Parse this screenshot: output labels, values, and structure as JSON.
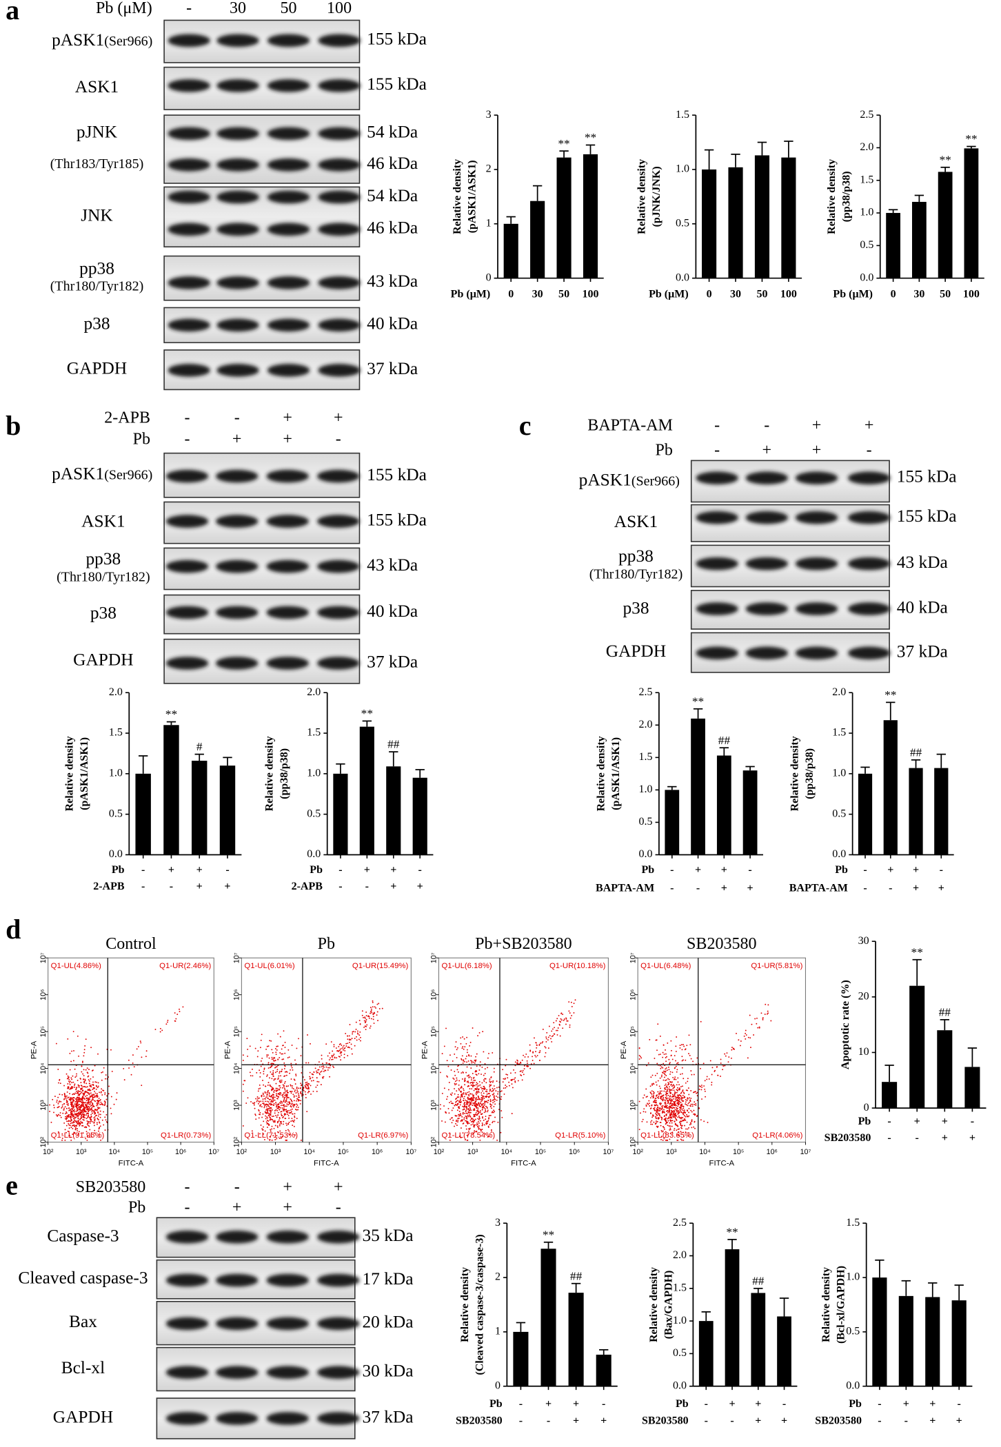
{
  "panel_labels": [
    "a",
    "b",
    "c",
    "d",
    "e"
  ],
  "blots": [
    {
      "header": [
        {
          "name": "Pb (μM)",
          "cells": [
            "-",
            "30",
            "50",
            "100"
          ]
        }
      ],
      "rows": [
        {
          "label": "pASK1",
          "sub": "(Ser966)",
          "kda": [
            "155 kDa"
          ]
        },
        {
          "label": "ASK1",
          "kda": [
            "155 kDa"
          ]
        },
        {
          "label": "pJNK",
          "sub": "(Thr183/Tyr185)",
          "kda": [
            "54 kDa",
            "46 kDa"
          ]
        },
        {
          "label": "JNK",
          "kda": [
            "54 kDa",
            "46 kDa"
          ]
        },
        {
          "label": "pp38",
          "sub": "(Thr180/Tyr182)",
          "kda": [
            "43 kDa"
          ]
        },
        {
          "label": "p38",
          "kda": [
            "40 kDa"
          ]
        },
        {
          "label": "GAPDH",
          "kda": [
            "37 kDa"
          ]
        }
      ]
    },
    {
      "header": [
        {
          "name": "2-APB",
          "cells": [
            "-",
            "-",
            "+",
            "+"
          ]
        },
        {
          "name": "Pb",
          "cells": [
            "-",
            "+",
            "+",
            "-"
          ]
        }
      ],
      "rows": [
        {
          "label": "pASK1",
          "sub": "(Ser966)",
          "kda": [
            "155 kDa"
          ]
        },
        {
          "label": "ASK1",
          "kda": [
            "155 kDa"
          ]
        },
        {
          "label": "pp38",
          "sub": "(Thr180/Tyr182)",
          "kda": [
            "43 kDa"
          ]
        },
        {
          "label": "p38",
          "kda": [
            "40 kDa"
          ]
        },
        {
          "label": "GAPDH",
          "kda": [
            "37 kDa"
          ]
        }
      ]
    },
    {
      "header": [
        {
          "name": "BAPTA-AM",
          "cells": [
            "-",
            "-",
            "+",
            "+"
          ]
        },
        {
          "name": "Pb",
          "cells": [
            "-",
            "+",
            "+",
            "-"
          ]
        }
      ],
      "rows": [
        {
          "label": "pASK1",
          "sub": "(Ser966)",
          "kda": [
            "155 kDa"
          ]
        },
        {
          "label": "ASK1",
          "kda": [
            "155 kDa"
          ]
        },
        {
          "label": "pp38",
          "sub": "(Thr180/Tyr182)",
          "kda": [
            "43 kDa"
          ]
        },
        {
          "label": "p38",
          "kda": [
            "40 kDa"
          ]
        },
        {
          "label": "GAPDH",
          "kda": [
            "37 kDa"
          ]
        }
      ]
    },
    {
      "header": [
        {
          "name": "SB203580",
          "cells": [
            "-",
            "-",
            "+",
            "+"
          ]
        },
        {
          "name": "Pb",
          "cells": [
            "-",
            "+",
            "+",
            "-"
          ]
        }
      ],
      "rows": [
        {
          "label": "Caspase-3",
          "kda": [
            "35 kDa"
          ]
        },
        {
          "label": "Cleaved caspase-3",
          "kda": [
            "17 kDa"
          ]
        },
        {
          "label": "Bax",
          "kda": [
            "20 kDa"
          ]
        },
        {
          "label": "Bcl-xl",
          "kda": [
            "30 kDa"
          ]
        },
        {
          "label": "GAPDH",
          "kda": [
            "37 kDa"
          ]
        }
      ]
    }
  ],
  "chart_data": [
    {
      "type": "bar",
      "ylabel": [
        "Relative density",
        "(pASK1/ASK1)"
      ],
      "color": "#000000",
      "ylim": [
        0,
        3
      ],
      "yticks": [
        0,
        1,
        2,
        3
      ],
      "xlabel": "Pb (μM)",
      "categories": [
        "0",
        "30",
        "50",
        "100"
      ],
      "values": [
        1.0,
        1.42,
        2.22,
        2.28
      ],
      "errors": [
        0.13,
        0.28,
        0.12,
        0.17
      ],
      "annotations": [
        null,
        null,
        "**",
        "**"
      ]
    },
    {
      "type": "bar",
      "ylabel": [
        "Relative density",
        "(pJNK/JNK)"
      ],
      "color": "#000000",
      "ylim": [
        0,
        1.5
      ],
      "yticks": [
        {
          "value": 0,
          "label": "0.0"
        },
        0.5,
        {
          "value": 1,
          "label": "1.0"
        },
        1.5
      ],
      "xlabel": "Pb (μM)",
      "categories": [
        "0",
        "30",
        "50",
        "100"
      ],
      "values": [
        1.0,
        1.02,
        1.13,
        1.11
      ],
      "errors": [
        0.18,
        0.12,
        0.12,
        0.15
      ],
      "annotations": [
        null,
        null,
        null,
        null
      ]
    },
    {
      "type": "bar",
      "ylabel": [
        "Relative density",
        "(pp38/p38)"
      ],
      "color": "#000000",
      "ylim": [
        0,
        2.5
      ],
      "yticks": [
        {
          "value": 0,
          "label": "0.0"
        },
        0.5,
        {
          "value": 1,
          "label": "1.0"
        },
        1.5,
        {
          "value": 2,
          "label": "2.0"
        },
        2.5
      ],
      "xlabel": "Pb (μM)",
      "categories": [
        "0",
        "30",
        "50",
        "100"
      ],
      "values": [
        1.0,
        1.17,
        1.63,
        1.99
      ],
      "errors": [
        0.05,
        0.1,
        0.07,
        0.03
      ],
      "annotations": [
        null,
        null,
        "**",
        "**"
      ]
    },
    {
      "type": "bar",
      "ylabel": [
        "Relative density",
        "(pASK1/ASK1)"
      ],
      "color": "#000000",
      "ylim": [
        0,
        2
      ],
      "yticks": [
        {
          "value": 0,
          "label": "0.0"
        },
        0.5,
        {
          "value": 1,
          "label": "1.0"
        },
        1.5,
        {
          "value": 2,
          "label": "2.0"
        }
      ],
      "conditions": [
        {
          "name": "Pb",
          "signs": [
            "-",
            "+",
            "+",
            "-"
          ]
        },
        {
          "name": "2-APB",
          "signs": [
            "-",
            "-",
            "+",
            "+"
          ]
        }
      ],
      "values": [
        1.0,
        1.6,
        1.16,
        1.1
      ],
      "errors": [
        0.22,
        0.04,
        0.08,
        0.1
      ],
      "annotations": [
        null,
        "**",
        "#",
        null
      ]
    },
    {
      "type": "bar",
      "ylabel": [
        "Relative density",
        "(pp38/p38)"
      ],
      "color": "#000000",
      "ylim": [
        0,
        2
      ],
      "yticks": [
        {
          "value": 0,
          "label": "0.0"
        },
        0.5,
        {
          "value": 1,
          "label": "1.0"
        },
        1.5,
        {
          "value": 2,
          "label": "2.0"
        }
      ],
      "conditions": [
        {
          "name": "Pb",
          "signs": [
            "-",
            "+",
            "+",
            "-"
          ]
        },
        {
          "name": "2-APB",
          "signs": [
            "-",
            "-",
            "+",
            "+"
          ]
        }
      ],
      "values": [
        1.0,
        1.58,
        1.09,
        0.95
      ],
      "errors": [
        0.12,
        0.07,
        0.18,
        0.1
      ],
      "annotations": [
        null,
        "**",
        "##",
        null
      ]
    },
    {
      "type": "bar",
      "ylabel": [
        "Relative density",
        "(pASK1/ASK1)"
      ],
      "color": "#000000",
      "ylim": [
        0,
        2.5
      ],
      "yticks": [
        {
          "value": 0,
          "label": "0.0"
        },
        0.5,
        {
          "value": 1,
          "label": "1.0"
        },
        1.5,
        {
          "value": 2,
          "label": "2.0"
        },
        2.5
      ],
      "conditions": [
        {
          "name": "Pb",
          "signs": [
            "-",
            "+",
            "+",
            "-"
          ]
        },
        {
          "name": "BAPTA-AM",
          "signs": [
            "-",
            "-",
            "+",
            "+"
          ]
        }
      ],
      "values": [
        1.0,
        2.1,
        1.53,
        1.3
      ],
      "errors": [
        0.05,
        0.15,
        0.12,
        0.06
      ],
      "annotations": [
        null,
        "**",
        "##",
        null
      ]
    },
    {
      "type": "bar",
      "ylabel": [
        "Relative density",
        "(pp38/p38)"
      ],
      "color": "#000000",
      "ylim": [
        0,
        2
      ],
      "yticks": [
        {
          "value": 0,
          "label": "0.0"
        },
        0.5,
        {
          "value": 1,
          "label": "1.0"
        },
        1.5,
        {
          "value": 2,
          "label": "2.0"
        }
      ],
      "conditions": [
        {
          "name": "Pb",
          "signs": [
            "-",
            "+",
            "+",
            "-"
          ]
        },
        {
          "name": "BAPTA-AM",
          "signs": [
            "-",
            "-",
            "+",
            "+"
          ]
        }
      ],
      "values": [
        1.0,
        1.66,
        1.07,
        1.07
      ],
      "errors": [
        0.08,
        0.22,
        0.1,
        0.17
      ],
      "annotations": [
        null,
        "**",
        "##",
        null
      ]
    },
    {
      "type": "bar",
      "ylabel": [
        "Apoptotic rate (%)"
      ],
      "color": "#000000",
      "ylim": [
        0,
        30
      ],
      "yticks": [
        0,
        10,
        20,
        30
      ],
      "conditions": [
        {
          "name": "Pb",
          "signs": [
            "-",
            "+",
            "+",
            "-"
          ]
        },
        {
          "name": "SB203580",
          "signs": [
            "-",
            "-",
            "+",
            "+"
          ]
        }
      ],
      "values": [
        4.7,
        22.0,
        14.0,
        7.4
      ],
      "errors": [
        3.0,
        4.7,
        1.9,
        3.4
      ],
      "annotations": [
        null,
        "**",
        "##",
        null
      ]
    },
    {
      "type": "bar",
      "ylabel": [
        "Relative density",
        "(Cleaved caspase-3/caspase-3)"
      ],
      "color": "#000000",
      "ylim": [
        0,
        3
      ],
      "yticks": [
        0,
        1,
        2,
        3
      ],
      "conditions": [
        {
          "name": "Pb",
          "signs": [
            "-",
            "+",
            "+",
            "-"
          ]
        },
        {
          "name": "SB203580",
          "signs": [
            "-",
            "-",
            "+",
            "+"
          ]
        }
      ],
      "values": [
        1.0,
        2.53,
        1.72,
        0.58
      ],
      "errors": [
        0.17,
        0.12,
        0.17,
        0.09
      ],
      "annotations": [
        null,
        "**",
        "##",
        null
      ]
    },
    {
      "type": "bar",
      "ylabel": [
        "Relative density",
        "(Bax/GAPDH)"
      ],
      "color": "#000000",
      "ylim": [
        0,
        2.5
      ],
      "yticks": [
        {
          "value": 0,
          "label": "0.0"
        },
        0.5,
        {
          "value": 1,
          "label": "1.0"
        },
        1.5,
        {
          "value": 2,
          "label": "2.0"
        },
        2.5
      ],
      "conditions": [
        {
          "name": "Pb",
          "signs": [
            "-",
            "+",
            "+",
            "-"
          ]
        },
        {
          "name": "SB203580",
          "signs": [
            "-",
            "-",
            "+",
            "+"
          ]
        }
      ],
      "values": [
        1.0,
        2.1,
        1.43,
        1.07
      ],
      "errors": [
        0.14,
        0.15,
        0.07,
        0.28
      ],
      "annotations": [
        null,
        "**",
        "##",
        null
      ]
    },
    {
      "type": "bar",
      "ylabel": [
        "Relative density",
        "(Bcl-xl/GAPDH)"
      ],
      "color": "#000000",
      "ylim": [
        0,
        1.5
      ],
      "yticks": [
        {
          "value": 0,
          "label": "0.0"
        },
        0.5,
        {
          "value": 1,
          "label": "1.0"
        },
        1.5
      ],
      "conditions": [
        {
          "name": "Pb",
          "signs": [
            "-",
            "+",
            "+",
            "-"
          ]
        },
        {
          "name": "SB203580",
          "signs": [
            "-",
            "-",
            "+",
            "+"
          ]
        }
      ],
      "values": [
        1.0,
        0.83,
        0.82,
        0.79
      ],
      "errors": [
        0.16,
        0.14,
        0.13,
        0.14
      ],
      "annotations": [
        null,
        null,
        null,
        null
      ]
    }
  ],
  "flow_plots": {
    "xlabel": "FITC-A",
    "ylabel": "PE-A",
    "log_scale": true,
    "lim": [
      100,
      10000000
    ],
    "ticks": [
      {
        "value": 100,
        "label": "10²"
      },
      {
        "value": 1000,
        "label": "10³"
      },
      {
        "value": 10000,
        "label": "10⁴"
      },
      {
        "value": 100000,
        "label": "10⁵"
      },
      {
        "value": 1000000,
        "label": "10⁶"
      },
      {
        "value": 10000000,
        "label": "10⁷"
      }
    ],
    "color": "#e00000",
    "plots": [
      {
        "title": "Control",
        "quadrants": {
          "UL": "Q1-UL(4.86%)",
          "UR": "Q1-UR(2.46%)",
          "LL": "Q1-LL(91.96%)",
          "LR": "Q1-LR(0.73%)"
        }
      },
      {
        "title": "Pb",
        "quadrants": {
          "UL": "Q1-UL(6.01%)",
          "UR": "Q1-UR(15.49%)",
          "LL": "Q1-LL(71.53%)",
          "LR": "Q1-LR(6.97%)"
        }
      },
      {
        "title": "Pb+SB203580",
        "quadrants": {
          "UL": "Q1-UL(6.18%)",
          "UR": "Q1-UR(10.18%)",
          "LL": "Q1-LL(78.54%)",
          "LR": "Q1-LR(5.10%)"
        }
      },
      {
        "title": "SB203580",
        "quadrants": {
          "UL": "Q1-UL(6.48%)",
          "UR": "Q1-UR(5.81%)",
          "LL": "Q1-LL(83.65%)",
          "LR": "Q1-LR(4.06%)"
        }
      }
    ]
  }
}
